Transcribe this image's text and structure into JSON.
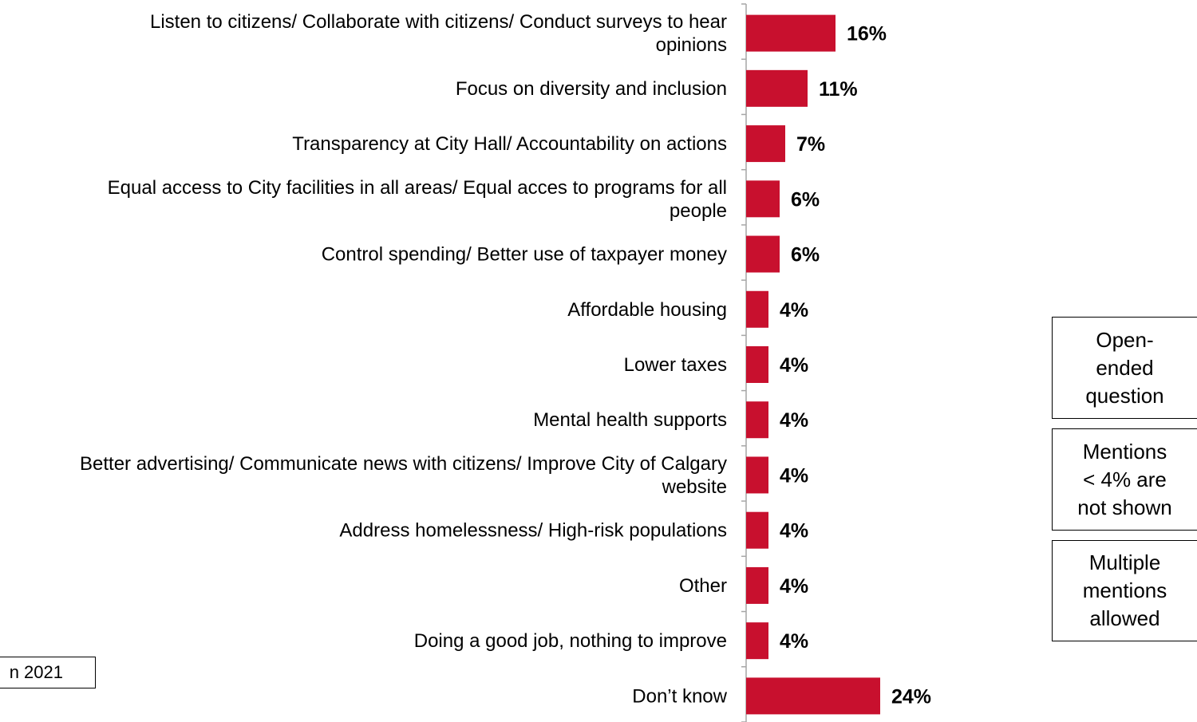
{
  "chart_data": {
    "type": "bar",
    "orientation": "horizontal",
    "categories": [
      "Listen to citizens/ Collaborate with citizens/ Conduct surveys to hear opinions",
      "Focus on diversity and inclusion",
      "Transparency at City Hall/ Accountability on actions",
      "Equal access to City facilities in all areas/ Equal acces to programs for all people",
      "Control spending/ Better use of taxpayer money",
      "Affordable housing",
      "Lower taxes",
      "Mental health supports",
      "Better advertising/ Communicate news with citizens/ Improve City of Calgary website",
      "Address homelessness/ High-risk populations",
      "Other",
      "Doing a good job, nothing to improve",
      "Don’t know"
    ],
    "category_lines": [
      [
        "Listen to citizens/ Collaborate with citizens/ Conduct surveys to hear",
        "opinions"
      ],
      [
        "Focus on diversity and inclusion"
      ],
      [
        "Transparency at City Hall/ Accountability on actions"
      ],
      [
        "Equal access to City facilities in all areas/ Equal acces to programs for all",
        "people"
      ],
      [
        "Control spending/ Better use of taxpayer money"
      ],
      [
        "Affordable housing"
      ],
      [
        "Lower taxes"
      ],
      [
        "Mental health supports"
      ],
      [
        "Better advertising/ Communicate news with citizens/ Improve City of Calgary",
        "website"
      ],
      [
        "Address homelessness/ High-risk populations"
      ],
      [
        "Other"
      ],
      [
        "Doing a good job, nothing to improve"
      ],
      [
        "Don’t know"
      ]
    ],
    "values": [
      16,
      11,
      7,
      6,
      6,
      4,
      4,
      4,
      4,
      4,
      4,
      4,
      24
    ],
    "value_labels": [
      "16%",
      "11%",
      "7%",
      "6%",
      "6%",
      "4%",
      "4%",
      "4%",
      "4%",
      "4%",
      "4%",
      "4%",
      "24%"
    ],
    "bar_color": "#C8102E",
    "grid": false,
    "legend": "none"
  },
  "notes": {
    "open_ended": "Open-\nended\nquestion",
    "threshold": "Mentions\n< 4% are\nnot shown",
    "multiple": "Multiple\nmentions\nallowed"
  },
  "year_label": "n 2021"
}
